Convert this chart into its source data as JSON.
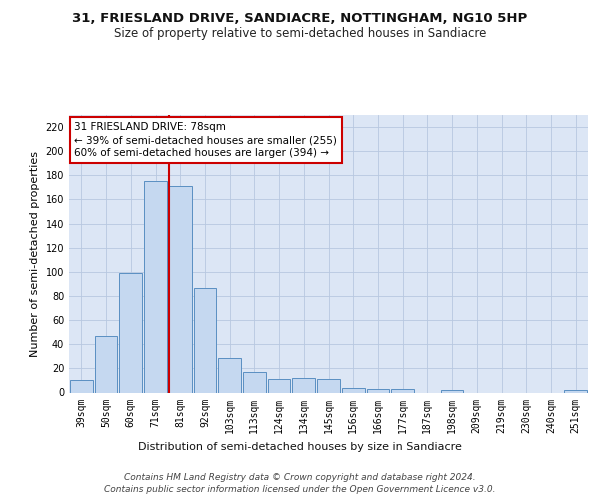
{
  "title": "31, FRIESLAND DRIVE, SANDIACRE, NOTTINGHAM, NG10 5HP",
  "subtitle": "Size of property relative to semi-detached houses in Sandiacre",
  "xlabel": "Distribution of semi-detached houses by size in Sandiacre",
  "ylabel": "Number of semi-detached properties",
  "categories": [
    "39sqm",
    "50sqm",
    "60sqm",
    "71sqm",
    "81sqm",
    "92sqm",
    "103sqm",
    "113sqm",
    "124sqm",
    "134sqm",
    "145sqm",
    "156sqm",
    "166sqm",
    "177sqm",
    "187sqm",
    "198sqm",
    "209sqm",
    "219sqm",
    "230sqm",
    "240sqm",
    "251sqm"
  ],
  "values": [
    10,
    47,
    99,
    175,
    171,
    87,
    29,
    17,
    11,
    12,
    11,
    4,
    3,
    3,
    0,
    2,
    0,
    0,
    0,
    0,
    2
  ],
  "bar_color": "#c5d8f0",
  "bar_edge_color": "#5a8fc2",
  "red_line_x": 3.55,
  "red_line_color": "#cc0000",
  "annotation_text": "31 FRIESLAND DRIVE: 78sqm\n← 39% of semi-detached houses are smaller (255)\n60% of semi-detached houses are larger (394) →",
  "annotation_box_color": "#ffffff",
  "annotation_box_edge_color": "#cc0000",
  "ylim": [
    0,
    230
  ],
  "yticks": [
    0,
    20,
    40,
    60,
    80,
    100,
    120,
    140,
    160,
    180,
    200,
    220
  ],
  "bg_color": "#dce6f5",
  "fig_bg": "#ffffff",
  "footer": "Contains HM Land Registry data © Crown copyright and database right 2024.\nContains public sector information licensed under the Open Government Licence v3.0.",
  "title_fontsize": 9.5,
  "subtitle_fontsize": 8.5,
  "ylabel_fontsize": 8,
  "xlabel_fontsize": 8,
  "tick_fontsize": 7,
  "footer_fontsize": 6.5,
  "ann_fontsize": 7.5
}
